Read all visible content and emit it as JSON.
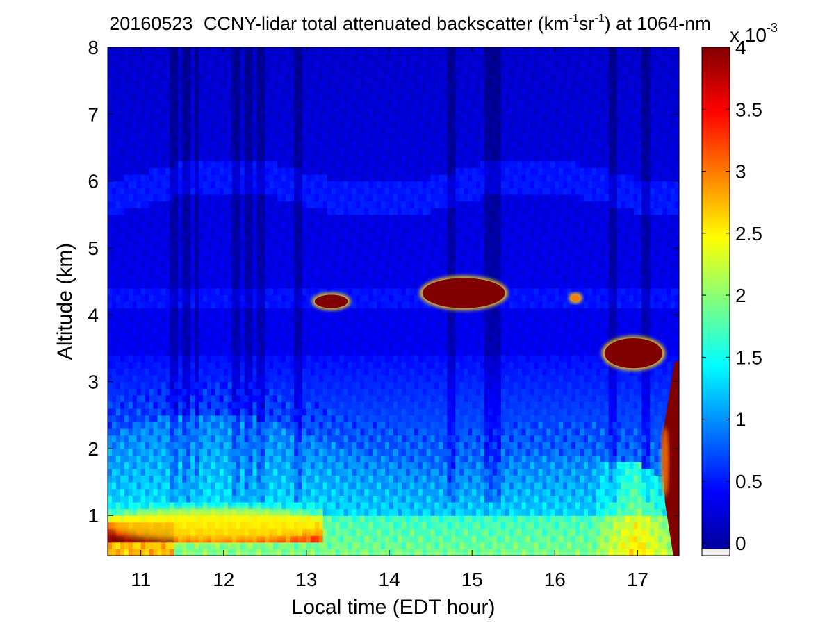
{
  "chart_data": {
    "type": "heatmap",
    "title": {
      "date": "20160523",
      "text_a": "CCNY-lidar total attenuated backscatter (km",
      "sup_a": "-1",
      "text_b": "sr",
      "sup_b": "-1",
      "text_c": ") at 1064-nm"
    },
    "xlabel": "Local time (EDT hour)",
    "ylabel": "Altitude (km)",
    "xlim": [
      10.6,
      17.5
    ],
    "ylim": [
      0.4,
      8
    ],
    "xticks": [
      11,
      12,
      13,
      14,
      15,
      16,
      17
    ],
    "yticks": [
      1,
      2,
      3,
      4,
      5,
      6,
      7,
      8
    ],
    "colorbar": {
      "colormap": "jet",
      "range": [
        -0.1,
        4
      ],
      "ticks": [
        0,
        0.5,
        1,
        1.5,
        2,
        2.5,
        3,
        3.5,
        4
      ],
      "tick_labels": [
        "0",
        "0.5",
        "1",
        "1.5",
        "2",
        "2.5",
        "3",
        "3.5",
        "4"
      ],
      "multiplier_base": "x 10",
      "multiplier_exponent": "-3",
      "units": "km-1 sr-1"
    },
    "features": [
      {
        "name": "boundary layer aerosol",
        "x_range": [
          10.6,
          17.5
        ],
        "altitude_km": [
          0.4,
          2.2
        ],
        "value_x1e-3": [
          1.0,
          2.5
        ]
      },
      {
        "name": "early boundary layer top",
        "x_range": [
          10.6,
          13.2
        ],
        "altitude_km": [
          0.6,
          1.5
        ],
        "value_x1e-3": [
          2.5,
          4.0
        ]
      },
      {
        "name": "thin cloud",
        "x_range": [
          13.1,
          13.5
        ],
        "altitude_km": [
          4.1,
          4.3
        ],
        "value_x1e-3": [
          4,
          4
        ]
      },
      {
        "name": "cloud",
        "x_range": [
          14.4,
          15.4
        ],
        "altitude_km": [
          4.1,
          4.55
        ],
        "value_x1e-3": [
          4,
          4
        ]
      },
      {
        "name": "small cloud",
        "x_range": [
          16.2,
          16.3
        ],
        "altitude_km": [
          4.2,
          4.3
        ],
        "value_x1e-3": [
          2,
          3
        ]
      },
      {
        "name": "cloud",
        "x_range": [
          16.6,
          17.3
        ],
        "altitude_km": [
          3.2,
          3.65
        ],
        "value_x1e-3": [
          4,
          4
        ]
      },
      {
        "name": "low cloud and precipitation",
        "x_range": [
          17.25,
          17.5
        ],
        "altitude_km": [
          0.4,
          3.3
        ],
        "value_x1e-3": [
          4,
          4
        ]
      },
      {
        "name": "elevated aerosol layer",
        "x_range": [
          10.6,
          17.5
        ],
        "altitude_km": [
          5.6,
          6.3
        ],
        "value_x1e-3": [
          0.3,
          0.6
        ]
      },
      {
        "name": "free troposphere",
        "x_range": [
          10.6,
          17.5
        ],
        "altitude_km": [
          3.5,
          8
        ],
        "value_x1e-3": [
          0.1,
          0.4
        ]
      }
    ]
  }
}
